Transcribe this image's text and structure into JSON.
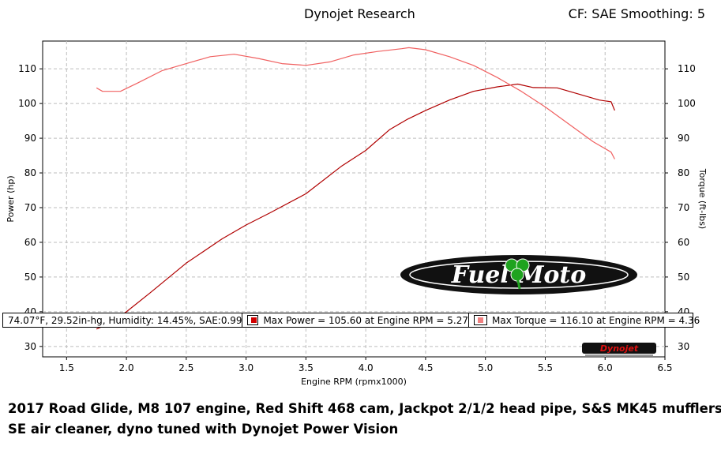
{
  "header": {
    "center": "Dynojet Research",
    "right": "CF: SAE Smoothing: 5"
  },
  "info_bar": {
    "conditions": "74.07°F, 29.52in-hg, Humidity: 14.45%, SAE:0.99",
    "max_power": "Max Power = 105.60 at Engine RPM = 5.27",
    "max_torque": "Max Torque = 116.10 at Engine RPM = 4.36"
  },
  "logos": {
    "fuel_moto": "Fuel Moto",
    "dynojet": "Dynojet"
  },
  "caption": {
    "line1": "2017 Road Glide, M8 107 engine, Red Shift 468 cam, Jackpot 2/1/2 head pipe, S&S MK45 mufflers,",
    "line2": "SE air cleaner, dyno tuned with Dynojet Power Vision"
  },
  "colors": {
    "power": "#b00000",
    "torque": "#f06060",
    "grid": "#bdbdbd"
  },
  "chart_data": {
    "type": "line",
    "xlabel": "Engine RPM (rpmx1000)",
    "ylabel": "Power (hp)",
    "y2label": "Torque (ft-lbs)",
    "xlim": [
      1.3,
      6.5
    ],
    "ylim": [
      27,
      118
    ],
    "x_ticks": [
      "1.5",
      "2.0",
      "2.5",
      "3.0",
      "3.5",
      "4.0",
      "4.5",
      "5.0",
      "5.5",
      "6.0",
      "6.5"
    ],
    "y_ticks": [
      "30",
      "40",
      "50",
      "60",
      "70",
      "80",
      "90",
      "100",
      "110"
    ],
    "y2_ticks": [
      "30",
      "40",
      "50",
      "60",
      "70",
      "80",
      "90",
      "100",
      "110"
    ],
    "grid": true,
    "series": [
      {
        "name": "Power",
        "axis": "left",
        "color": "#b00000",
        "x": [
          1.75,
          1.85,
          2.0,
          2.2,
          2.5,
          2.8,
          3.0,
          3.2,
          3.5,
          3.8,
          4.0,
          4.2,
          4.35,
          4.5,
          4.7,
          4.9,
          5.1,
          5.27,
          5.4,
          5.6,
          5.8,
          5.95,
          6.05,
          6.08
        ],
        "values": [
          35,
          36.5,
          40,
          45.5,
          54,
          61,
          65,
          68.5,
          74,
          82,
          86.5,
          92.5,
          95.5,
          98,
          101,
          103.5,
          104.8,
          105.6,
          104.6,
          104.5,
          102.5,
          101,
          100.5,
          98
        ]
      },
      {
        "name": "Torque",
        "axis": "right",
        "color": "#f06060",
        "x": [
          1.75,
          1.8,
          1.95,
          2.1,
          2.3,
          2.5,
          2.7,
          2.9,
          3.1,
          3.3,
          3.5,
          3.7,
          3.9,
          4.1,
          4.3,
          4.36,
          4.5,
          4.7,
          4.9,
          5.1,
          5.3,
          5.5,
          5.7,
          5.9,
          6.05,
          6.08
        ],
        "values": [
          104.5,
          103.5,
          103.5,
          106,
          109.5,
          111.5,
          113.5,
          114.2,
          113,
          111.5,
          111,
          112,
          114,
          115,
          115.8,
          116.1,
          115.5,
          113.5,
          111,
          107.5,
          103.5,
          99,
          94,
          89,
          86,
          84
        ]
      }
    ]
  }
}
